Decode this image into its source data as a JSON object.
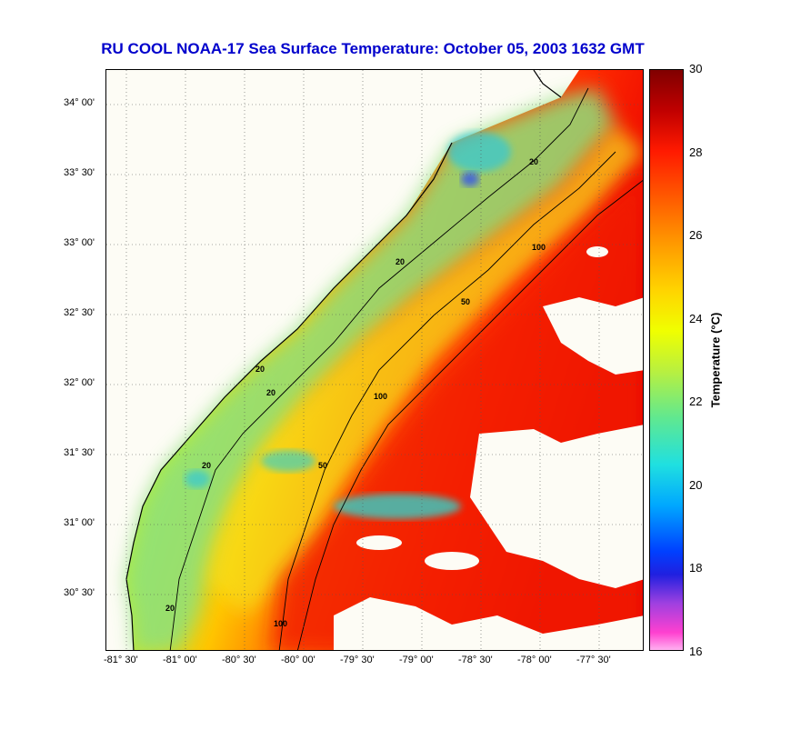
{
  "title": "RU COOL  NOAA-17  Sea Surface Temperature:  October 05, 2003 1632 GMT",
  "map": {
    "lat_labels": [
      "34° 00'",
      "33° 30'",
      "33° 00'",
      "32° 30'",
      "32° 00'",
      "31° 30'",
      "31° 00'",
      "30° 30'"
    ],
    "lon_labels": [
      "-81° 30'",
      "-81° 00'",
      "-80° 30'",
      "-80° 00'",
      "-79° 30'",
      "-79° 00'",
      "-78° 30'",
      "-78° 00'",
      "-77° 30'"
    ],
    "contour_labels": [
      "20",
      "20",
      "20",
      "20",
      "20",
      "20",
      "50",
      "50",
      "100",
      "100",
      "100"
    ],
    "colors": {
      "land": "#fdfcf5",
      "cloud": "#fdfcf5",
      "coastline": "#000000",
      "grid": "#555555"
    }
  },
  "colorbar": {
    "title": "Temperature (°C)",
    "ticks": [
      "30",
      "28",
      "26",
      "24",
      "22",
      "20",
      "18",
      "16"
    ],
    "range": [
      16,
      30
    ]
  }
}
